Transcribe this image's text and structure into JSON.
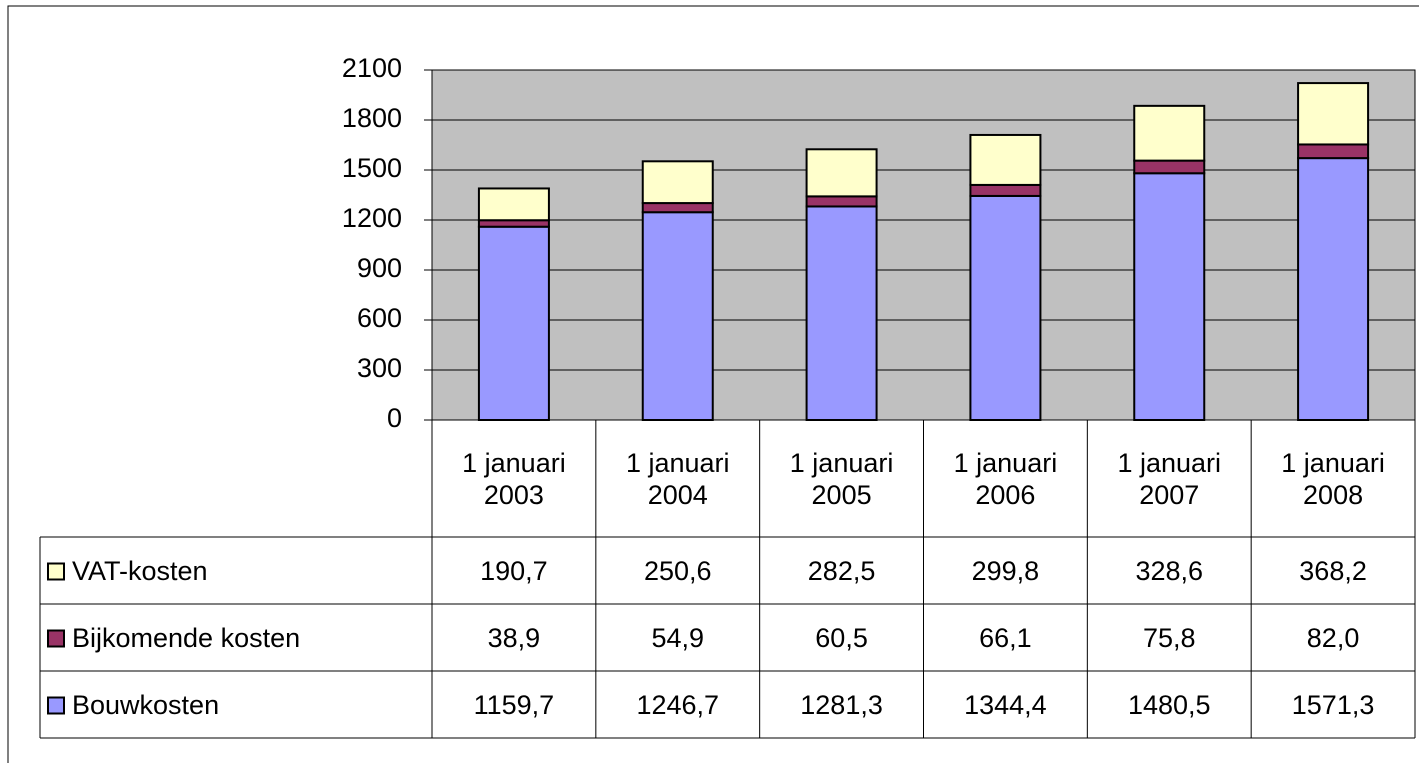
{
  "chart_data": {
    "type": "stacked-bar",
    "categories": [
      "1 januari 2003",
      "1 januari 2004",
      "1 januari 2005",
      "1 januari 2006",
      "1 januari 2007",
      "1 januari 2008"
    ],
    "series": [
      {
        "name": "VAT-kosten",
        "color": "#ffffcc",
        "values": [
          190.7,
          250.6,
          282.5,
          299.8,
          328.6,
          368.2
        ],
        "value_labels": [
          "190,7",
          "250,6",
          "282,5",
          "299,8",
          "328,6",
          "368,2"
        ]
      },
      {
        "name": "Bijkomende kosten",
        "color": "#993366",
        "values": [
          38.9,
          54.9,
          60.5,
          66.1,
          75.8,
          82.0
        ],
        "value_labels": [
          "38,9",
          "54,9",
          "60,5",
          "66,1",
          "75,8",
          "82,0"
        ]
      },
      {
        "name": "Bouwkosten",
        "color": "#9999ff",
        "values": [
          1159.7,
          1246.7,
          1281.3,
          1344.4,
          1480.5,
          1571.3
        ],
        "value_labels": [
          "1159,7",
          "1246,7",
          "1281,3",
          "1344,4",
          "1480,5",
          "1571,3"
        ]
      }
    ],
    "ylim": [
      0,
      2100
    ],
    "yticks": [
      0,
      300,
      600,
      900,
      1200,
      1500,
      1800,
      2100
    ],
    "grid": true,
    "plot_background": "#c0c0c0"
  }
}
